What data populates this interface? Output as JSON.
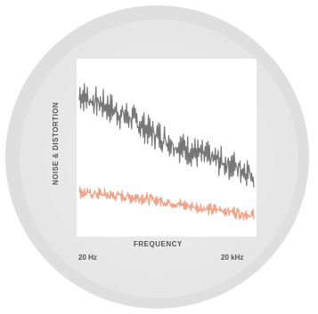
{
  "chart_data": {
    "type": "line",
    "title": "",
    "xlabel": "FREQUENCY",
    "ylabel": "NOISE & DISTORTION",
    "x_ticks": [
      "20 Hz",
      "20 kHz"
    ],
    "x_scale": "log",
    "xlim": [
      20,
      20000
    ],
    "ylim": [
      0,
      10
    ],
    "grid": false,
    "legend": "none",
    "series": [
      {
        "color": "#777777",
        "x": [
          20,
          30,
          45,
          70,
          100,
          150,
          220,
          330,
          500,
          750,
          1100,
          1700,
          2500,
          3800,
          5600,
          8500,
          12500,
          20000
        ],
        "values": [
          8.0,
          7.7,
          7.5,
          7.2,
          6.9,
          6.7,
          6.3,
          5.9,
          5.6,
          5.3,
          5.0,
          4.8,
          4.6,
          4.4,
          4.2,
          4.0,
          3.8,
          3.5
        ]
      },
      {
        "color": "#f0a58a",
        "x": [
          20,
          30,
          45,
          70,
          100,
          150,
          220,
          330,
          500,
          750,
          1100,
          1700,
          2500,
          3800,
          5600,
          8500,
          12500,
          20000
        ],
        "values": [
          2.5,
          2.4,
          2.4,
          2.3,
          2.3,
          2.2,
          2.2,
          2.1,
          2.0,
          1.9,
          1.8,
          1.7,
          1.6,
          1.5,
          1.5,
          1.4,
          1.3,
          1.2
        ]
      }
    ]
  }
}
